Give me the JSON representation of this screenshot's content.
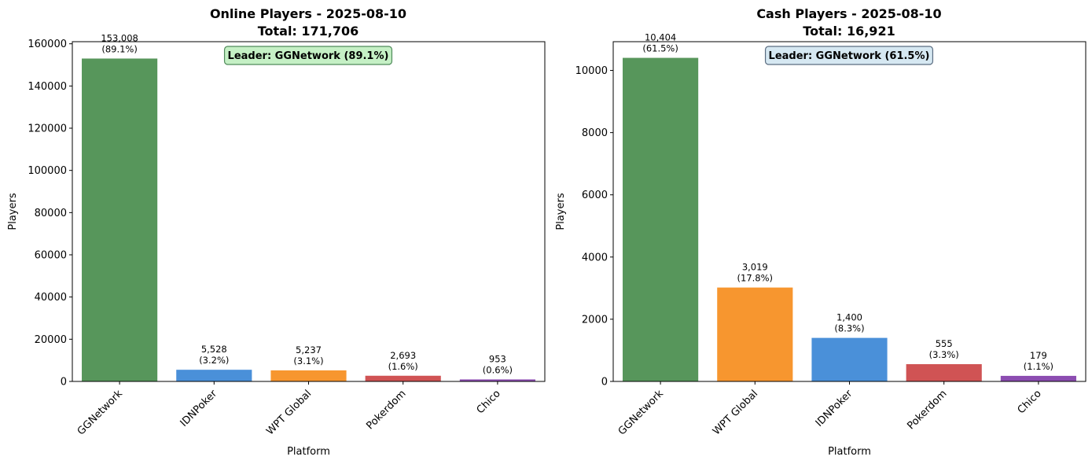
{
  "chart_data": [
    {
      "type": "bar",
      "title_line1": "Online Players - 2025-08-10",
      "title_line2": "Total: 171,706",
      "xlabel": "Platform",
      "ylabel": "Players",
      "ylim": [
        0,
        161000
      ],
      "yticks": [
        0,
        20000,
        40000,
        60000,
        80000,
        100000,
        120000,
        140000,
        160000
      ],
      "grid": false,
      "categories": [
        "GGNetwork",
        "IDNPoker",
        "WPT Global",
        "Pokerdom",
        "Chico"
      ],
      "values": [
        153008,
        5528,
        5237,
        2693,
        953
      ],
      "value_labels": [
        "153,008",
        "5,528",
        "5,237",
        "2,693",
        "953"
      ],
      "pct_labels": [
        "(89.1%)",
        "(3.2%)",
        "(3.1%)",
        "(1.6%)",
        "(0.6%)"
      ],
      "colors": [
        "#57965b",
        "#4a90d9",
        "#f7962f",
        "#d05354",
        "#8c4db1"
      ],
      "annotation": {
        "text": "Leader: GGNetwork (89.1%)",
        "fill": "#c5f0c5",
        "stroke": "#4f8a5a"
      }
    },
    {
      "type": "bar",
      "title_line1": "Cash Players - 2025-08-10",
      "title_line2": "Total: 16,921",
      "xlabel": "Platform",
      "ylabel": "Players",
      "ylim": [
        0,
        10924
      ],
      "yticks": [
        0,
        2000,
        4000,
        6000,
        8000,
        10000
      ],
      "grid": false,
      "categories": [
        "GGNetwork",
        "WPT Global",
        "IDNPoker",
        "Pokerdom",
        "Chico"
      ],
      "values": [
        10404,
        3019,
        1400,
        555,
        179
      ],
      "value_labels": [
        "10,404",
        "3,019",
        "1,400",
        "555",
        "179"
      ],
      "pct_labels": [
        "(61.5%)",
        "(17.8%)",
        "(8.3%)",
        "(3.3%)",
        "(1.1%)"
      ],
      "colors": [
        "#57965b",
        "#f7962f",
        "#4a90d9",
        "#d05354",
        "#8c4db1"
      ],
      "annotation": {
        "text": "Leader: GGNetwork (61.5%)",
        "fill": "#d6e8f2",
        "stroke": "#5a6c80"
      }
    }
  ]
}
